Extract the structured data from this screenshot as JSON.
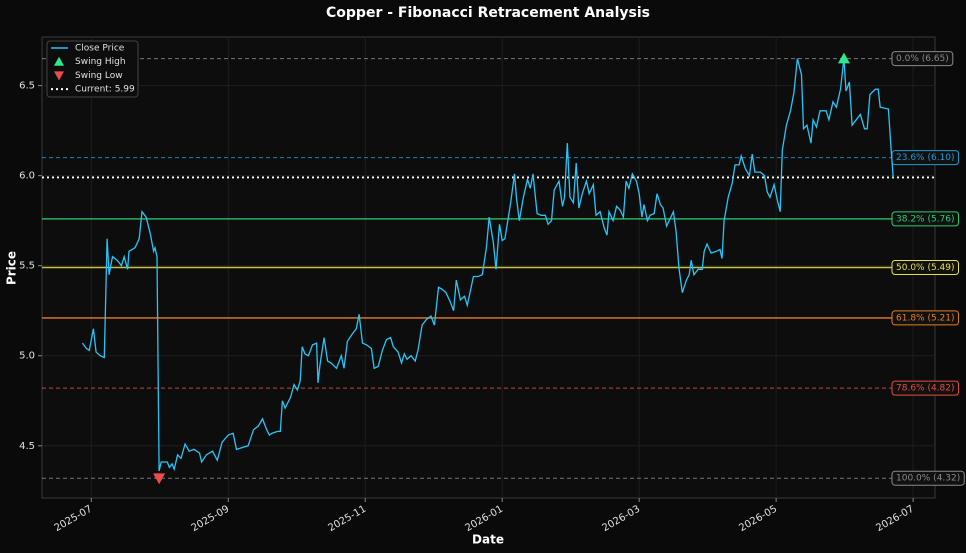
{
  "chart_data": {
    "type": "line",
    "title": "Copper - Fibonacci Retracement Analysis",
    "x_label": "Date",
    "y_label": "Price",
    "xlim": [
      6.28,
      19.32
    ],
    "ylim": [
      4.21,
      6.77
    ],
    "xticks": [
      {
        "value": 7,
        "label": "2025-07"
      },
      {
        "value": 9,
        "label": "2025-09"
      },
      {
        "value": 11,
        "label": "2025-11"
      },
      {
        "value": 13,
        "label": "2026-01"
      },
      {
        "value": 15,
        "label": "2026-03"
      },
      {
        "value": 17,
        "label": "2026-05"
      },
      {
        "value": 19,
        "label": "2026-07"
      }
    ],
    "yticks": [
      4.5,
      {
        "value": 5,
        "label": "5.0"
      },
      5.5,
      {
        "value": 6,
        "label": "6.0"
      },
      6.5
    ],
    "grid": true,
    "legend": "upper left",
    "series": [
      {
        "name": "Close Price",
        "color": "#29c5f6",
        "x": [
          6.87,
          6.93,
          6.97,
          7.03,
          7.07,
          7.13,
          7.19,
          7.23,
          7.26,
          7.31,
          7.38,
          7.44,
          7.48,
          7.53,
          7.55,
          7.64,
          7.7,
          7.74,
          7.8,
          7.86,
          7.91,
          7.93,
          7.96,
          7.99,
          8.02,
          8.11,
          8.14,
          8.18,
          8.21,
          8.26,
          8.31,
          8.37,
          8.43,
          8.5,
          8.58,
          8.61,
          8.68,
          8.77,
          8.84,
          8.91,
          9.0,
          9.07,
          9.12,
          9.2,
          9.29,
          9.37,
          9.44,
          9.5,
          9.56,
          9.6,
          9.64,
          9.72,
          9.76,
          9.79,
          9.83,
          9.91,
          9.96,
          10.01,
          10.05,
          10.08,
          10.12,
          10.17,
          10.23,
          10.29,
          10.31,
          10.34,
          10.4,
          10.45,
          10.5,
          10.58,
          10.65,
          10.69,
          10.74,
          10.81,
          10.87,
          10.91,
          10.96,
          11.02,
          11.09,
          11.13,
          11.19,
          11.25,
          11.31,
          11.37,
          11.41,
          11.48,
          11.53,
          11.57,
          11.61,
          11.67,
          11.73,
          11.77,
          11.83,
          11.89,
          11.96,
          12.01,
          12.07,
          12.12,
          12.18,
          12.24,
          12.29,
          12.33,
          12.39,
          12.45,
          12.49,
          12.53,
          12.58,
          12.65,
          12.71,
          12.77,
          12.81,
          12.87,
          12.91,
          12.96,
          13.0,
          13.04,
          13.12,
          13.18,
          13.21,
          13.25,
          13.31,
          13.37,
          13.41,
          13.45,
          13.51,
          13.57,
          13.63,
          13.67,
          13.72,
          13.76,
          13.83,
          13.88,
          13.91,
          13.95,
          13.99,
          14.04,
          14.08,
          14.12,
          14.17,
          14.23,
          14.27,
          14.33,
          14.37,
          14.43,
          14.49,
          14.53,
          14.56,
          14.62,
          14.67,
          14.72,
          14.77,
          14.81,
          14.85,
          14.9,
          14.96,
          15.0,
          15.04,
          15.07,
          15.12,
          15.16,
          15.22,
          15.26,
          15.31,
          15.35,
          15.4,
          15.45,
          15.5,
          15.54,
          15.58,
          15.63,
          15.69,
          15.73,
          15.76,
          15.8,
          15.86,
          15.92,
          15.95,
          15.99,
          16.05,
          16.13,
          16.18,
          16.21,
          16.24,
          16.3,
          16.36,
          16.4,
          16.46,
          16.49,
          16.55,
          16.61,
          16.65,
          16.69,
          16.77,
          16.83,
          16.87,
          16.91,
          16.97,
          17.02,
          17.06,
          17.09,
          17.15,
          17.21,
          17.26,
          17.31,
          17.37,
          17.4,
          17.45,
          17.51,
          17.54,
          17.59,
          17.64,
          17.73,
          17.77,
          17.83,
          17.88,
          17.94,
          17.99,
          18.02,
          18.07,
          18.11,
          18.17,
          18.23,
          18.29,
          18.33,
          18.37,
          18.45,
          18.49,
          18.52,
          18.64,
          18.68,
          18.71
        ],
        "values": [
          5.07,
          5.04,
          5.03,
          5.15,
          5.02,
          5.0,
          4.99,
          5.65,
          5.45,
          5.55,
          5.53,
          5.5,
          5.55,
          5.48,
          5.58,
          5.6,
          5.65,
          5.8,
          5.77,
          5.68,
          5.58,
          5.6,
          5.55,
          4.36,
          4.41,
          4.41,
          4.38,
          4.4,
          4.37,
          4.45,
          4.43,
          4.51,
          4.47,
          4.48,
          4.46,
          4.41,
          4.45,
          4.47,
          4.42,
          4.52,
          4.56,
          4.57,
          4.48,
          4.49,
          4.5,
          4.59,
          4.61,
          4.65,
          4.59,
          4.56,
          4.57,
          4.58,
          4.58,
          4.75,
          4.71,
          4.77,
          4.84,
          4.81,
          4.86,
          5.05,
          5.01,
          5.0,
          5.06,
          5.07,
          4.85,
          4.95,
          5.1,
          4.97,
          4.96,
          4.93,
          5.0,
          4.93,
          5.08,
          5.12,
          5.15,
          5.23,
          5.07,
          5.06,
          5.04,
          4.93,
          4.94,
          5.03,
          5.09,
          5.1,
          5.05,
          5.02,
          4.96,
          5.01,
          4.98,
          5.0,
          4.97,
          5.03,
          5.17,
          5.2,
          5.22,
          5.17,
          5.38,
          5.37,
          5.35,
          5.3,
          5.25,
          5.42,
          5.31,
          5.33,
          5.28,
          5.35,
          5.44,
          5.44,
          5.45,
          5.6,
          5.77,
          5.63,
          5.48,
          5.73,
          5.64,
          5.65,
          5.84,
          6.01,
          5.87,
          5.75,
          5.88,
          5.98,
          5.93,
          6.01,
          5.79,
          5.78,
          5.78,
          5.73,
          5.75,
          5.92,
          5.97,
          5.83,
          5.88,
          6.18,
          5.88,
          5.85,
          6.07,
          5.82,
          5.9,
          5.97,
          5.9,
          5.95,
          5.78,
          5.8,
          5.71,
          5.67,
          5.8,
          5.75,
          5.83,
          5.81,
          5.77,
          5.97,
          5.93,
          6.01,
          5.97,
          5.9,
          5.77,
          5.84,
          5.75,
          5.78,
          5.79,
          5.9,
          5.84,
          5.82,
          5.72,
          5.76,
          5.8,
          5.69,
          5.49,
          5.35,
          5.42,
          5.45,
          5.53,
          5.45,
          5.48,
          5.48,
          5.58,
          5.62,
          5.57,
          5.58,
          5.59,
          5.54,
          5.75,
          5.88,
          5.96,
          6.06,
          6.06,
          6.11,
          6.04,
          6.0,
          6.12,
          6.02,
          6.02,
          6.0,
          5.91,
          5.88,
          5.95,
          5.86,
          5.8,
          6.14,
          6.28,
          6.36,
          6.46,
          6.65,
          6.56,
          6.26,
          6.28,
          6.18,
          6.31,
          6.27,
          6.36,
          6.36,
          6.31,
          6.41,
          6.38,
          6.48,
          6.65,
          6.47,
          6.52,
          6.28,
          6.31,
          6.34,
          6.26,
          6.26,
          6.45,
          6.48,
          6.48,
          6.38,
          6.37,
          6.14,
          5.99
        ]
      }
    ],
    "markers": [
      {
        "name": "Swing High",
        "x": 17.99,
        "y": 6.65,
        "color": "#2ee88a",
        "shape": "up"
      },
      {
        "name": "Swing Low",
        "x": 7.99,
        "y": 4.32,
        "color": "#f04a4a",
        "shape": "down"
      }
    ],
    "current": {
      "name": "Current: 5.99",
      "value": 5.99,
      "color": "#ffffff"
    },
    "fib_levels": [
      {
        "label": "0.0% (6.65)",
        "value": 6.65,
        "color": "#8a8a8a",
        "dashed": true
      },
      {
        "label": "23.6% (6.10)",
        "value": 6.1,
        "color": "#1f9bd1",
        "dashed": true
      },
      {
        "label": "38.2% (5.76)",
        "value": 5.76,
        "color": "#2ecc71",
        "dashed": false
      },
      {
        "label": "50.0% (5.49)",
        "value": 5.49,
        "color": "#e8e04a",
        "dashed": false
      },
      {
        "label": "61.8% (5.21)",
        "value": 5.21,
        "color": "#e67e22",
        "dashed": false
      },
      {
        "label": "78.6% (4.82)",
        "value": 4.82,
        "color": "#e74c3c",
        "dashed": true
      },
      {
        "label": "100.0% (4.32)",
        "value": 4.32,
        "color": "#8a8a8a",
        "dashed": true
      }
    ]
  }
}
